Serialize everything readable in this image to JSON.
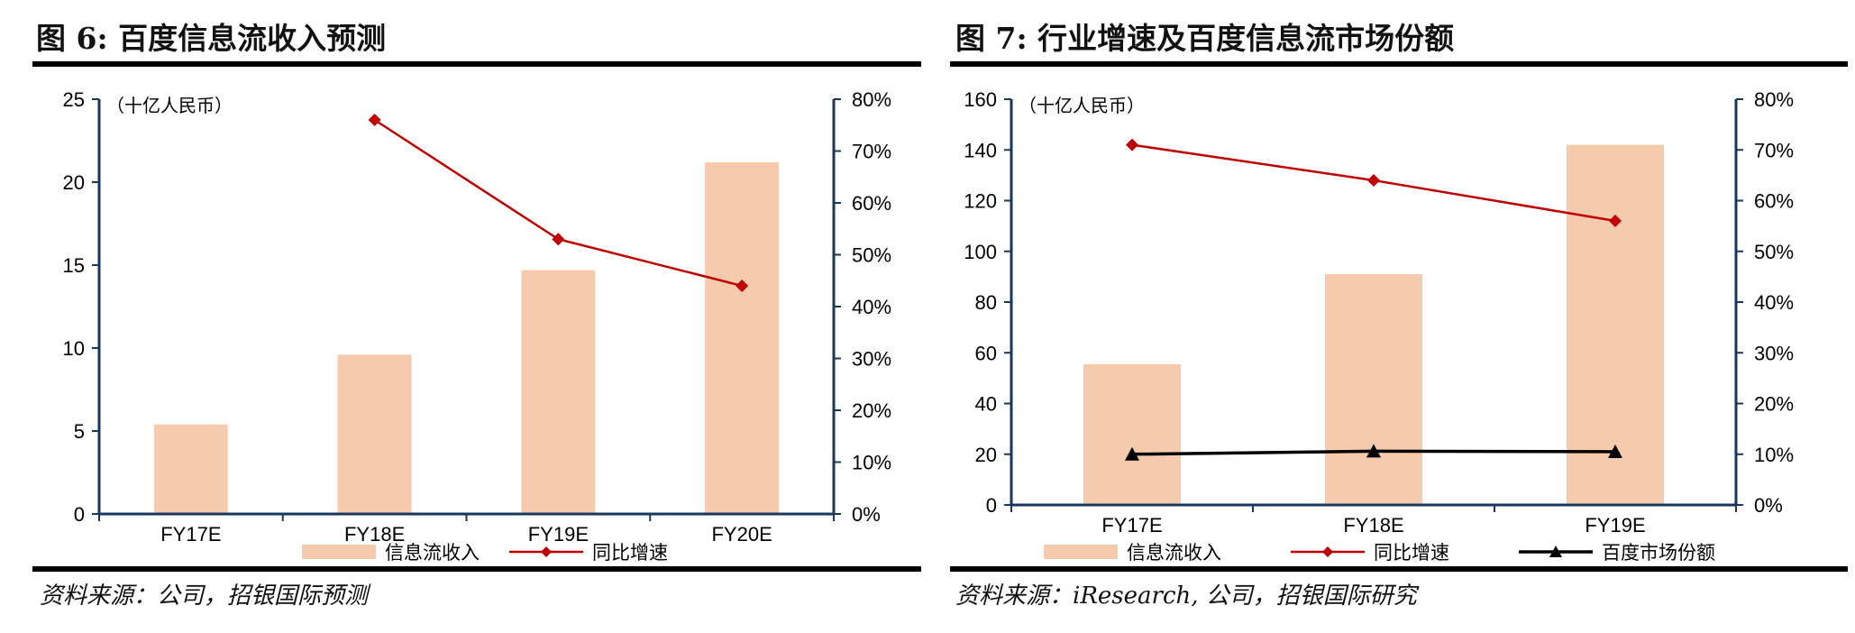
{
  "colors": {
    "bar": "#f6cbad",
    "line": "#c00000",
    "share": "#000000",
    "axis": "#17375e"
  },
  "chart_data": [
    {
      "type": "bar",
      "title": "图 6: 百度信息流收入预测",
      "unit_note": "（十亿人民币）",
      "source": "资料来源：公司，招银国际预测",
      "categories": [
        "FY17E",
        "FY18E",
        "FY19E",
        "FY20E"
      ],
      "y_ticks": [
        "0",
        "5",
        "10",
        "15",
        "20",
        "25"
      ],
      "y2_ticks": [
        "0%",
        "10%",
        "20%",
        "30%",
        "40%",
        "50%",
        "60%",
        "70%",
        "80%"
      ],
      "ylim": [
        0,
        25
      ],
      "y2lim": [
        0,
        80
      ],
      "series": [
        {
          "name": "信息流收入",
          "kind": "bar",
          "axis": "left",
          "values": [
            5.4,
            9.6,
            14.7,
            21.2
          ]
        },
        {
          "name": "同比增速",
          "kind": "line",
          "axis": "right",
          "marker": "diamond",
          "values": [
            null,
            76,
            53,
            44
          ]
        }
      ],
      "legend_position": "bottom"
    },
    {
      "type": "bar",
      "title": "图 7: 行业增速及百度信息流市场份额",
      "unit_note": "（十亿人民币）",
      "source": "资料来源：iResearch, 公司，招银国际研究",
      "categories": [
        "FY17E",
        "FY18E",
        "FY19E"
      ],
      "y_ticks": [
        "0",
        "20",
        "40",
        "60",
        "80",
        "100",
        "120",
        "140",
        "160"
      ],
      "y2_ticks": [
        "0%",
        "10%",
        "20%",
        "30%",
        "40%",
        "50%",
        "60%",
        "70%",
        "80%"
      ],
      "ylim": [
        0,
        160
      ],
      "y2lim": [
        0,
        80
      ],
      "series": [
        {
          "name": "信息流收入",
          "kind": "bar",
          "axis": "left",
          "values": [
            55.5,
            91,
            142
          ]
        },
        {
          "name": "同比增速",
          "kind": "line",
          "axis": "right",
          "marker": "diamond",
          "values": [
            71,
            64,
            56
          ]
        },
        {
          "name": "百度市场份额",
          "kind": "line",
          "axis": "right",
          "marker": "triangle",
          "values": [
            10,
            10.6,
            10.5
          ]
        }
      ],
      "legend_position": "bottom"
    }
  ]
}
